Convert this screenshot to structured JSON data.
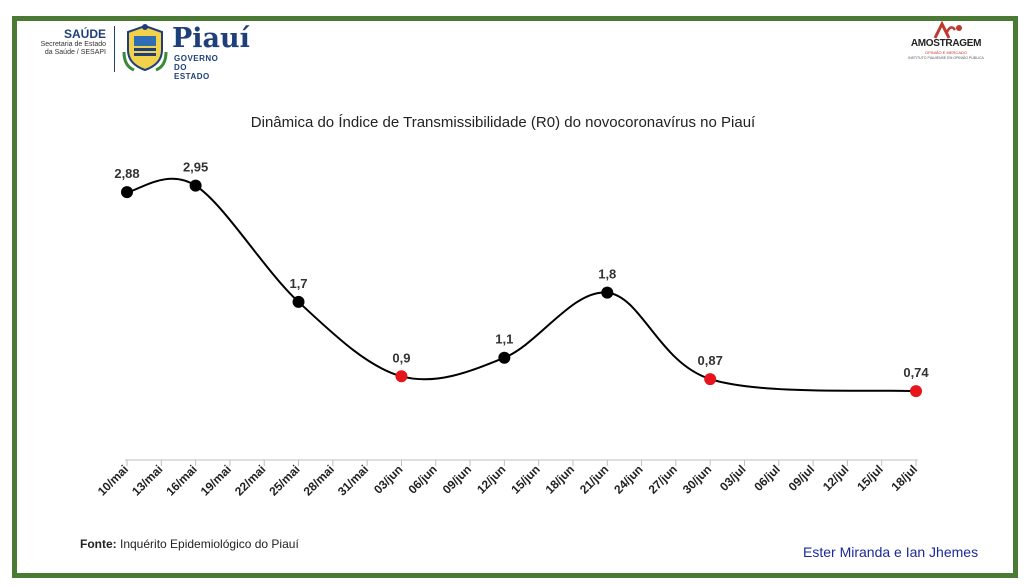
{
  "header": {
    "saude_title": "SAÚDE",
    "saude_line1": "Secretaria de Estado",
    "saude_line2": "da Saúde / SESAPI",
    "state_name": "Piauí",
    "state_sub": "GOVERNO DO ESTADO",
    "partner_name": "AMOSTRAGEM",
    "partner_sub": "OPINIÃO E MERCADO",
    "partner_sub2": "INSTITUTO PIAUIENSE EM OPINIÃO PÚBLICA"
  },
  "footer": {
    "source_label": "Fonte:",
    "source_text": "Inquérito Epidemiológico do Piauí",
    "authors": "Ester Miranda e Ian Jhemes"
  },
  "colors": {
    "frame": "#4a7a33",
    "line": "#000000",
    "point_normal": "#000000",
    "point_highlight": "#e8141c",
    "authors": "#1a2a9c"
  },
  "chart_data": {
    "type": "line",
    "title": "Dinâmica do Índice de Transmissibilidade (R0)  do novocoronavírus no Piauí",
    "xlabel": "",
    "ylabel": "",
    "categories": [
      "10/mai",
      "13/mai",
      "16/mai",
      "19/mai",
      "22/mai",
      "25/mai",
      "28/mai",
      "31/mai",
      "03/jun",
      "06/jun",
      "09/jun",
      "12/jun",
      "15/jun",
      "18/jun",
      "21/jun",
      "24/jun",
      "27/jun",
      "30/jun",
      "03/jul",
      "06/jul",
      "09/jul",
      "12/jul",
      "15/jul",
      "18/jul"
    ],
    "points": [
      {
        "x": "10/mai",
        "y": 2.88,
        "label": "2,88",
        "highlight": false
      },
      {
        "x": "16/mai",
        "y": 2.95,
        "label": "2,95",
        "highlight": false
      },
      {
        "x": "25/mai",
        "y": 1.7,
        "label": "1,7",
        "highlight": false
      },
      {
        "x": "03/jun",
        "y": 0.9,
        "label": "0,9",
        "highlight": true
      },
      {
        "x": "12/jun",
        "y": 1.1,
        "label": "1,1",
        "highlight": false
      },
      {
        "x": "21/jun",
        "y": 1.8,
        "label": "1,8",
        "highlight": false
      },
      {
        "x": "30/jun",
        "y": 0.87,
        "label": "0,87",
        "highlight": true
      },
      {
        "x": "18/jul",
        "y": 0.74,
        "label": "0,74",
        "highlight": true
      }
    ],
    "ylim": [
      0,
      3.5
    ],
    "grid": false,
    "legend": "none"
  }
}
